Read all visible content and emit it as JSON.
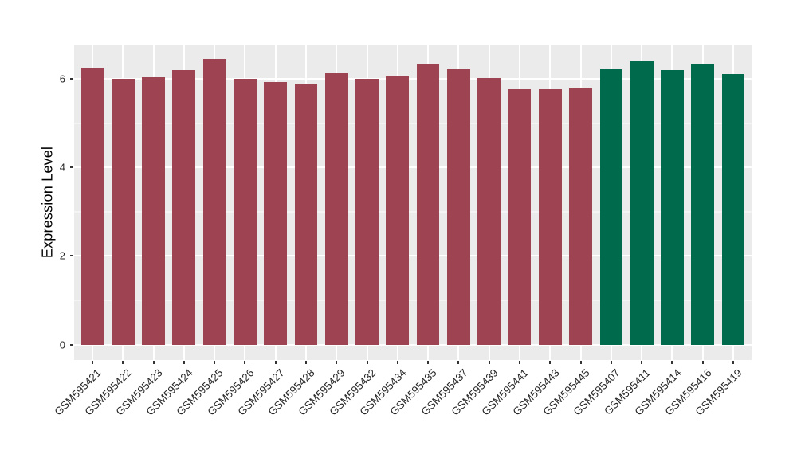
{
  "figure": {
    "y_axis_title": "Expression Level"
  },
  "style": {
    "page_background": "#FFFFFF",
    "panel_background": "#EBEBEB",
    "grid_color": "#FFFFFF",
    "axis_text_color": "#262626",
    "tick_color": "#333333",
    "bar_color_maroon": "#9E4352",
    "bar_color_green": "#006B4C"
  },
  "chart_data": {
    "type": "bar",
    "title": "",
    "xlabel": "",
    "ylabel": "Expression Level",
    "ylim": [
      -0.35,
      6.78
    ],
    "y_ticks": [
      0,
      2,
      4,
      6
    ],
    "y_minor_ticks": [
      1,
      3,
      5
    ],
    "grid": true,
    "legend": "none",
    "bar_width_fraction": 0.75,
    "x_label_angle_deg": 45,
    "series": [
      {
        "name": "maroon-bars",
        "color": "#9E4352",
        "categories": [
          "GSM595421",
          "GSM595422",
          "GSM595423",
          "GSM595424",
          "GSM595425",
          "GSM595426",
          "GSM595427",
          "GSM595428",
          "GSM595429",
          "GSM595432",
          "GSM595434",
          "GSM595435",
          "GSM595437",
          "GSM595439",
          "GSM595441",
          "GSM595443",
          "GSM595445"
        ],
        "values": [
          6.26,
          6.0,
          6.05,
          6.21,
          6.45,
          6.01,
          5.93,
          5.89,
          6.14,
          6.0,
          6.08,
          6.34,
          6.23,
          6.02,
          5.78,
          5.78,
          5.8
        ]
      },
      {
        "name": "green-bars",
        "color": "#006B4C",
        "categories": [
          "GSM595407",
          "GSM595411",
          "GSM595414",
          "GSM595416",
          "GSM595419"
        ],
        "values": [
          6.24,
          6.42,
          6.21,
          6.35,
          6.11
        ]
      }
    ]
  }
}
